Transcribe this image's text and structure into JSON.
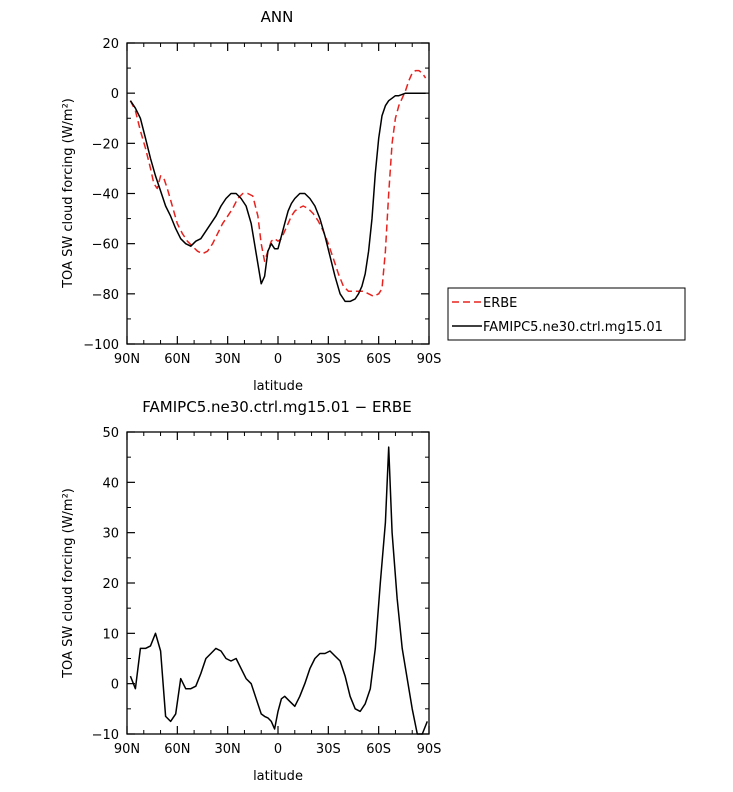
{
  "chart_data": [
    {
      "type": "line",
      "title": "ANN",
      "xlabel": "latitude",
      "ylabel": "TOA SW cloud forcing (W/m²)",
      "xlim": [
        90,
        -90
      ],
      "ylim": [
        -100,
        20
      ],
      "x_ticks": [
        90,
        60,
        30,
        0,
        -30,
        -60,
        -90
      ],
      "x_tick_labels": [
        "90N",
        "60N",
        "30N",
        "0",
        "30S",
        "60S",
        "90S"
      ],
      "y_ticks": [
        -100,
        -80,
        -60,
        -40,
        -20,
        0,
        20
      ],
      "y_tick_labels": [
        "−100",
        "−80",
        "−60",
        "−40",
        "−20",
        "0",
        "20"
      ],
      "legend": "right",
      "series": [
        {
          "name": "ERBE",
          "color": "#e8231f",
          "dash": "dashed",
          "x": [
            88,
            85,
            82,
            79,
            76,
            74,
            72,
            70,
            68,
            66,
            63,
            60,
            57,
            54,
            51,
            48,
            45,
            42,
            39,
            36,
            33,
            30,
            27,
            24,
            21,
            18,
            15,
            12,
            10,
            8,
            6,
            4,
            2,
            0,
            -2,
            -4,
            -6,
            -8,
            -10,
            -12,
            -15,
            -18,
            -21,
            -24,
            -27,
            -30,
            -33,
            -36,
            -39,
            -42,
            -45,
            -48,
            -51,
            -54,
            -57,
            -60,
            -62,
            -64,
            -66,
            -68,
            -70,
            -72,
            -74,
            -76,
            -78,
            -80,
            -82,
            -84,
            -86,
            -88
          ],
          "y": [
            -3,
            -7,
            -15,
            -22,
            -30,
            -36,
            -38,
            -33,
            -34,
            -38,
            -45,
            -52,
            -56,
            -59,
            -61,
            -63,
            -64,
            -63,
            -60,
            -56,
            -52,
            -49,
            -46,
            -42,
            -40,
            -40,
            -41,
            -49,
            -60,
            -67,
            -63,
            -59,
            -58,
            -59,
            -58,
            -55,
            -52,
            -49,
            -47,
            -46,
            -45,
            -46,
            -48,
            -51,
            -55,
            -60,
            -66,
            -72,
            -77,
            -79,
            -79,
            -79,
            -79,
            -80,
            -81,
            -80,
            -78,
            -63,
            -40,
            -20,
            -10,
            -5,
            -2,
            1,
            5,
            8,
            9,
            9,
            8,
            6
          ]
        },
        {
          "name": "FAMIPC5.ne30.ctrl.mg15.01",
          "color": "#000000",
          "dash": "solid",
          "x": [
            88,
            85,
            82,
            79,
            76,
            73,
            70,
            67,
            64,
            61,
            58,
            55,
            52,
            49,
            46,
            43,
            40,
            37,
            34,
            31,
            28,
            25,
            22,
            19,
            16,
            13,
            10,
            8,
            6,
            4,
            2,
            0,
            -2,
            -4,
            -6,
            -8,
            -10,
            -13,
            -16,
            -19,
            -22,
            -25,
            -28,
            -31,
            -34,
            -37,
            -40,
            -43,
            -46,
            -48,
            -50,
            -52,
            -54,
            -56,
            -58,
            -60,
            -62,
            -64,
            -66,
            -68,
            -70,
            -72,
            -74,
            -76,
            -78,
            -80,
            -84,
            -88
          ],
          "y": [
            -3,
            -6,
            -10,
            -18,
            -26,
            -33,
            -39,
            -45,
            -49,
            -54,
            -58,
            -60,
            -61,
            -59,
            -58,
            -55,
            -52,
            -49,
            -45,
            -42,
            -40,
            -40,
            -42,
            -45,
            -52,
            -64,
            -76,
            -73,
            -63,
            -60,
            -62,
            -62,
            -57,
            -52,
            -47,
            -44,
            -42,
            -40,
            -40,
            -42,
            -45,
            -50,
            -57,
            -65,
            -73,
            -80,
            -83,
            -83,
            -82,
            -80,
            -77,
            -72,
            -63,
            -50,
            -32,
            -18,
            -9,
            -5,
            -3,
            -2,
            -1,
            -1,
            -0.5,
            0,
            0,
            0,
            0,
            0
          ]
        }
      ]
    },
    {
      "type": "line",
      "title": "FAMIPC5.ne30.ctrl.mg15.01  −  ERBE",
      "xlabel": "latitude",
      "ylabel": "TOA SW cloud forcing (W/m²)",
      "xlim": [
        90,
        -90
      ],
      "ylim": [
        -10,
        50
      ],
      "x_ticks": [
        90,
        60,
        30,
        0,
        -30,
        -60,
        -90
      ],
      "x_tick_labels": [
        "90N",
        "60N",
        "30N",
        "0",
        "30S",
        "60S",
        "90S"
      ],
      "y_ticks": [
        -10,
        0,
        10,
        20,
        30,
        40,
        50
      ],
      "y_tick_labels": [
        "−10",
        "0",
        "10",
        "20",
        "30",
        "40",
        "50"
      ],
      "series": [
        {
          "color": "#000000",
          "dash": "solid",
          "x": [
            88,
            85,
            82,
            79,
            76,
            73,
            70,
            67,
            64,
            61,
            58,
            55,
            52,
            49,
            46,
            43,
            40,
            37,
            34,
            31,
            28,
            25,
            22,
            19,
            16,
            13,
            10,
            8,
            6,
            4,
            2,
            0,
            -2,
            -4,
            -7,
            -10,
            -13,
            -16,
            -19,
            -22,
            -25,
            -28,
            -31,
            -34,
            -37,
            -40,
            -43,
            -46,
            -49,
            -52,
            -55,
            -58,
            -61,
            -64,
            -66,
            -68,
            -71,
            -74,
            -77,
            -80,
            -83,
            -86,
            -89
          ],
          "y": [
            1.5,
            -1,
            7,
            7,
            7.5,
            10,
            6.5,
            -6.5,
            -7.5,
            -6,
            1,
            -1,
            -1,
            -0.5,
            2,
            5,
            6,
            7,
            6.5,
            5,
            4.5,
            5,
            3,
            1,
            0,
            -3,
            -6,
            -6.5,
            -6.8,
            -7.5,
            -9,
            -5.5,
            -3,
            -2.5,
            -3.5,
            -4.5,
            -2.5,
            0,
            3,
            5,
            6,
            6,
            6.5,
            5.5,
            4.5,
            1.5,
            -2.5,
            -5,
            -5.5,
            -4,
            -1,
            7,
            20,
            32,
            47,
            30,
            17,
            7,
            1,
            -5,
            -10,
            -10,
            -7.5
          ]
        }
      ]
    }
  ]
}
